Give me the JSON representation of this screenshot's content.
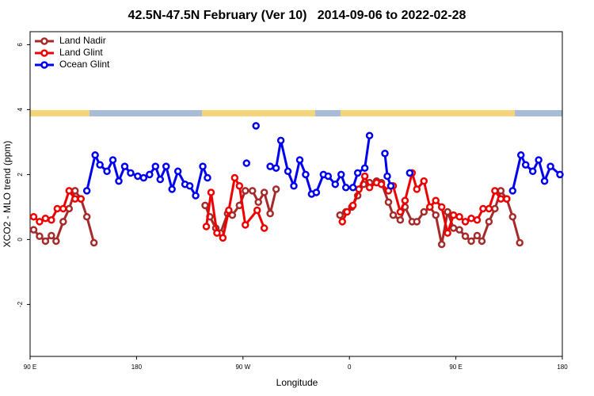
{
  "chart_data": {
    "type": "line",
    "title": "42.5N-47.5N February (Ver 10)   2014-09-06 to 2022-02-28",
    "x_label": "Longitude",
    "y_label": "XCO2 - MLO trend (ppm)",
    "xlim": [
      90,
      540
    ],
    "xticks": [
      {
        "value": 90,
        "label": "90 E"
      },
      180,
      {
        "value": 270,
        "label": "90 W"
      },
      {
        "value": 360,
        "label": "0"
      },
      {
        "value": 450,
        "label": "90 E"
      },
      {
        "value": 540,
        "label": "180"
      }
    ],
    "ylim": [
      -3.6,
      6.4
    ],
    "yticks": [
      -2,
      0,
      2,
      4,
      6
    ],
    "legend": "top-left",
    "series": [
      {
        "name": "Land Nadir",
        "color": "#a52a2a",
        "x": [
          93,
          98,
          103,
          108,
          112,
          118,
          123,
          128,
          133,
          138,
          144,
          null,
          238,
          242,
          247,
          251,
          257,
          261,
          267,
          272,
          278,
          283,
          288,
          293,
          298,
          null,
          352,
          357,
          362,
          367,
          372,
          377,
          383,
          387,
          393,
          397,
          403,
          407,
          413,
          417,
          423,
          428,
          433,
          438,
          443,
          448,
          453,
          458,
          463,
          468,
          472,
          478,
          483,
          488,
          493,
          498,
          504
        ],
        "values": [
          0.3,
          0.1,
          -0.05,
          0.12,
          -0.05,
          0.55,
          0.95,
          1.5,
          1.25,
          0.7,
          -0.1,
          null,
          1.05,
          0.7,
          0.35,
          0.2,
          0.8,
          0.75,
          1.05,
          1.5,
          1.5,
          1.15,
          1.45,
          0.8,
          1.55,
          null,
          0.75,
          0.85,
          1.0,
          1.35,
          1.7,
          1.75,
          1.8,
          1.75,
          1.15,
          0.75,
          0.6,
          1.0,
          0.55,
          0.55,
          0.85,
          1.0,
          0.75,
          -0.15,
          0.85,
          0.35,
          0.3,
          0.1,
          -0.05,
          0.12,
          -0.05,
          0.55,
          0.95,
          1.5,
          1.25,
          0.7,
          -0.1
        ]
      },
      {
        "name": "Land Glint",
        "color": "#ee0000",
        "x": [
          93,
          98,
          103,
          108,
          113,
          118,
          123,
          128,
          133,
          null,
          239,
          243,
          248,
          253,
          258,
          263,
          267,
          272,
          282,
          288,
          null,
          354,
          358,
          363,
          368,
          373,
          377,
          383,
          387,
          393,
          397,
          403,
          407,
          413,
          417,
          423,
          428,
          433,
          438,
          443,
          448,
          453,
          458,
          463,
          468,
          473,
          478,
          483,
          488,
          493
        ],
        "values": [
          0.7,
          0.55,
          0.65,
          0.6,
          0.95,
          0.95,
          1.5,
          1.25,
          1.25,
          null,
          0.4,
          1.45,
          0.2,
          0.05,
          0.9,
          1.9,
          1.65,
          0.45,
          0.9,
          0.35,
          null,
          0.55,
          0.85,
          1.05,
          1.55,
          1.95,
          1.6,
          1.75,
          1.7,
          1.5,
          1.65,
          0.85,
          1.2,
          2.05,
          1.55,
          1.8,
          1.0,
          1.2,
          1.0,
          0.2,
          0.75,
          0.7,
          0.55,
          0.65,
          0.6,
          0.95,
          0.95,
          1.5,
          1.25,
          1.25
        ]
      },
      {
        "name": "Ocean Glint",
        "color": "#0000ee",
        "x": [
          138,
          145,
          149,
          155,
          160,
          165,
          170,
          175,
          181,
          186,
          191,
          196,
          200,
          205,
          210,
          215,
          221,
          225,
          230,
          236,
          240,
          null,
          273,
          null,
          281,
          null,
          293,
          298,
          302,
          308,
          313,
          318,
          323,
          328,
          332,
          338,
          342,
          348,
          353,
          357,
          363,
          367,
          373,
          377,
          null,
          390,
          392,
          395,
          null,
          411,
          null,
          498,
          505,
          509,
          515,
          520,
          525,
          530,
          538
        ],
        "values": [
          1.5,
          2.6,
          2.3,
          2.1,
          2.45,
          1.8,
          2.25,
          2.05,
          1.95,
          1.9,
          2.0,
          2.25,
          1.85,
          2.25,
          1.55,
          2.1,
          1.7,
          1.65,
          1.35,
          2.25,
          1.9,
          null,
          2.35,
          null,
          3.5,
          null,
          2.25,
          2.2,
          3.05,
          2.1,
          1.65,
          2.45,
          2.0,
          1.4,
          1.45,
          2.0,
          1.95,
          1.7,
          2.0,
          1.6,
          1.6,
          2.05,
          2.2,
          3.2,
          null,
          2.65,
          1.95,
          1.65,
          null,
          2.05,
          null,
          1.5,
          2.6,
          2.3,
          2.1,
          2.45,
          1.8,
          2.25,
          2.0
        ]
      }
    ]
  }
}
